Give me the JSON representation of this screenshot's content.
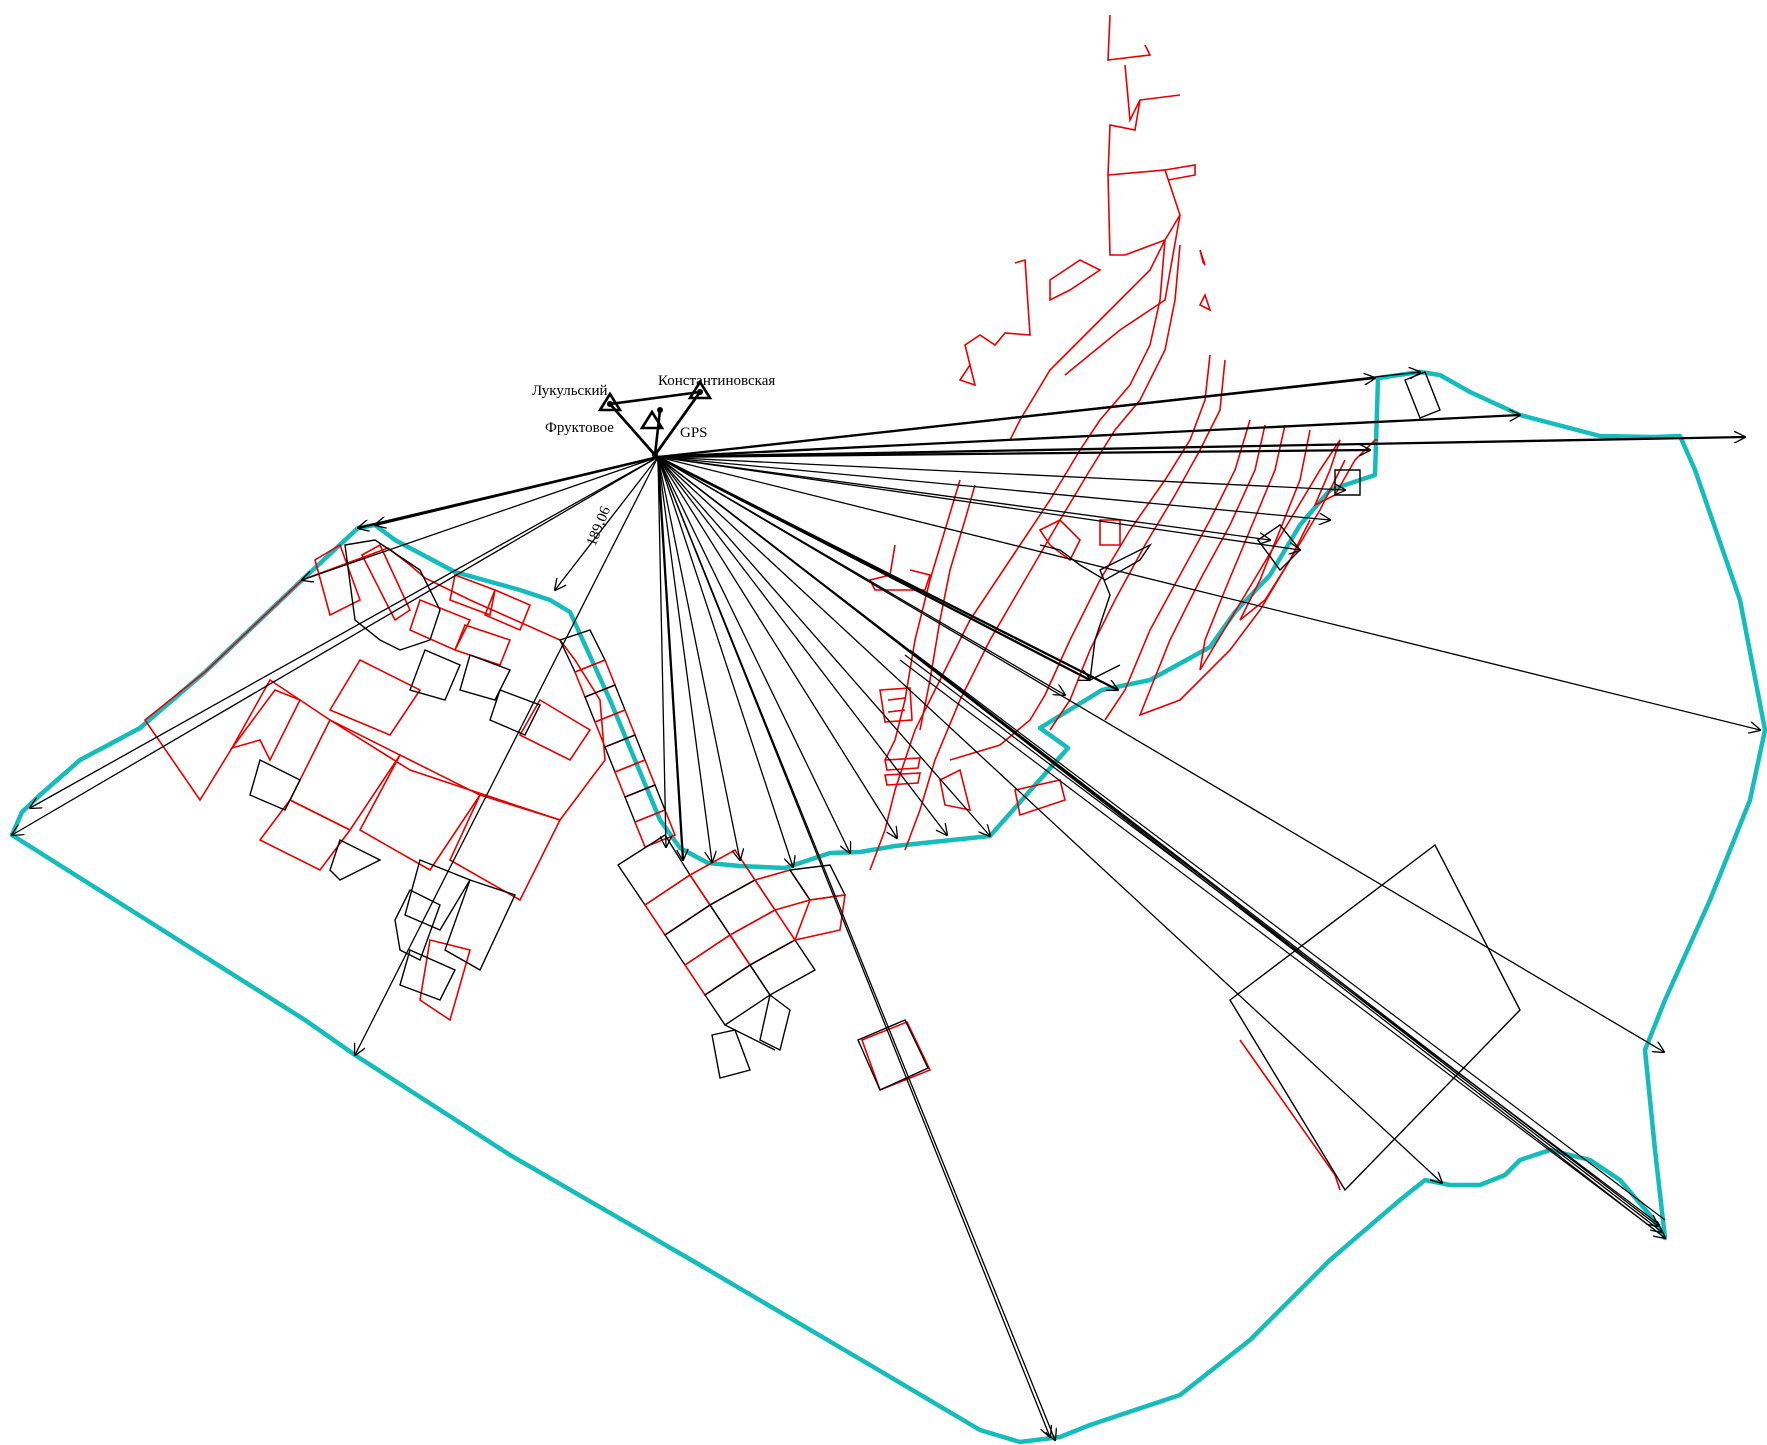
{
  "colors": {
    "boundary": "#14bcbc",
    "red_parcels": "#e60000",
    "black_lines": "#000000",
    "background": "#ffffff"
  },
  "labels": {
    "station_lukulsky": "Лукульский",
    "station_konstantinovskaya": "Константиновская",
    "station_fruktovoe": "Фруктовое",
    "station_gps": "GPS",
    "distance": "189,06"
  },
  "icons": {
    "geodetic_point": "triangle-marker",
    "ray_end": "arrowhead"
  }
}
